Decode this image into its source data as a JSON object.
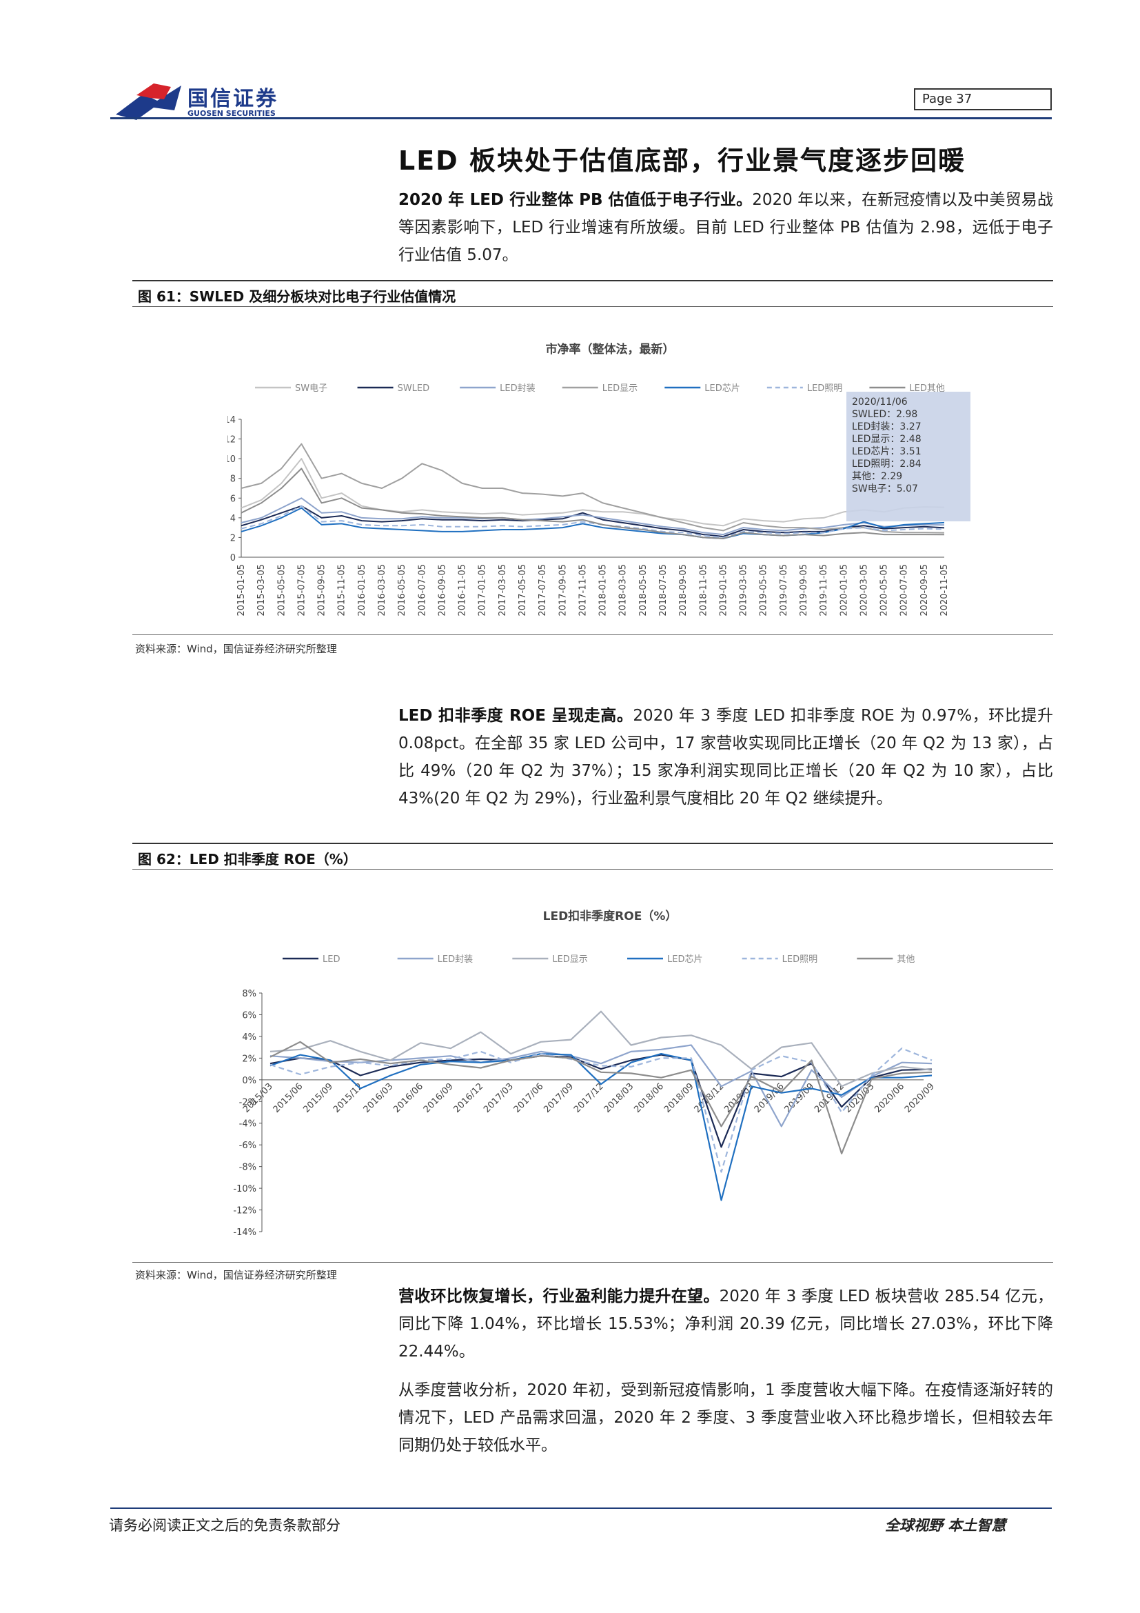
{
  "header": {
    "logo_cn": "国信证券",
    "logo_en": "GUOSEN SECURITIES",
    "page_label": "Page  37"
  },
  "title": "LED 板块处于估值底部，行业景气度逐步回暖",
  "para1": {
    "bold": "2020 年 LED 行业整体 PB 估值低于电子行业。",
    "text": "2020 年以来，在新冠疫情以及中美贸易战等因素影响下，LED 行业增速有所放缓。目前 LED 行业整体 PB 估值为 2.98，远低于电子行业估值 5.07。"
  },
  "fig61": {
    "caption": "图 61：SWLED 及细分板块对比电子行业估值情况",
    "source": "资料来源：Wind，国信证券经济研究所整理",
    "tooltip": [
      "2020/11/06",
      "SWLED：2.98",
      "LED封装：3.27",
      "LED显示：2.48",
      "LED芯片：3.51",
      "LED照明：2.84",
      "其他：2.29",
      "SW电子：5.07"
    ]
  },
  "para2": {
    "bold": "LED 扣非季度 ROE 呈现走高。",
    "text": "2020 年 3 季度 LED 扣非季度 ROE 为 0.97%，环比提升 0.08pct。在全部 35 家 LED 公司中，17 家营收实现同比正增长（20 年 Q2 为 13 家），占比 49%（20 年 Q2 为 37%）；15 家净利润实现同比正增长（20 年 Q2 为 10 家），占比 43%(20 年 Q2 为 29%)，行业盈利景气度相比 20 年 Q2 继续提升。"
  },
  "fig62": {
    "caption": "图 62：LED 扣非季度 ROE（%）",
    "source": "资料来源：Wind，国信证券经济研究所整理"
  },
  "para3": {
    "bold": "营收环比恢复增长，行业盈利能力提升在望。",
    "text": "2020 年 3 季度 LED 板块营收 285.54 亿元，同比下降 1.04%，环比增长 15.53%；净利润 20.39 亿元，同比增长 27.03%，环比下降 22.44%。"
  },
  "para4": {
    "text": "从季度营收分析，2020 年初，受到新冠疫情影响，1 季度营收大幅下降。在疫情逐渐好转的情况下，LED 产品需求回温，2020 年 2 季度、3 季度营业收入环比稳步增长，但相较去年同期仍处于较低水平。"
  },
  "footer": {
    "left": "请务必阅读正文之后的免责条款部分",
    "right": "全球视野  本土智慧"
  },
  "chart_data": [
    {
      "type": "line",
      "title": "市净率（整体法，最新）",
      "ylim": [
        0,
        14
      ],
      "yticks": [
        0,
        2,
        4,
        6,
        8,
        10,
        12,
        14
      ],
      "categories": [
        "2015-01-05",
        "2015-03-05",
        "2015-05-05",
        "2015-07-05",
        "2015-09-05",
        "2015-11-05",
        "2016-01-05",
        "2016-03-05",
        "2016-05-05",
        "2016-07-05",
        "2016-09-05",
        "2016-11-05",
        "2017-01-05",
        "2017-03-05",
        "2017-05-05",
        "2017-07-05",
        "2017-09-05",
        "2017-11-05",
        "2018-01-05",
        "2018-03-05",
        "2018-05-05",
        "2018-07-05",
        "2018-09-05",
        "2018-11-05",
        "2019-01-05",
        "2019-03-05",
        "2019-05-05",
        "2019-07-05",
        "2019-09-05",
        "2019-11-05",
        "2020-01-05",
        "2020-03-05",
        "2020-05-05",
        "2020-07-05",
        "2020-09-05",
        "2020-11-05"
      ],
      "series": [
        {
          "name": "SW电子",
          "color": "#c4c4c4",
          "dash": false,
          "values": [
            5.0,
            5.8,
            7.5,
            10.0,
            6.0,
            6.5,
            5.2,
            4.8,
            4.6,
            4.8,
            4.6,
            4.5,
            4.4,
            4.5,
            4.3,
            4.4,
            4.5,
            4.8,
            4.6,
            4.6,
            4.4,
            4.0,
            3.8,
            3.4,
            3.2,
            3.9,
            3.7,
            3.6,
            3.9,
            4.0,
            4.6,
            4.8,
            4.6,
            5.0,
            5.1,
            5.07
          ]
        },
        {
          "name": "SWLED",
          "color": "#1b2a55",
          "dash": false,
          "values": [
            3.2,
            3.8,
            4.5,
            5.2,
            4.0,
            4.2,
            3.7,
            3.6,
            3.7,
            3.9,
            3.8,
            3.8,
            3.7,
            3.8,
            3.7,
            3.8,
            3.9,
            4.5,
            3.8,
            3.5,
            3.2,
            2.9,
            2.7,
            2.3,
            2.1,
            2.8,
            2.6,
            2.5,
            2.6,
            2.6,
            3.0,
            3.2,
            2.9,
            3.0,
            3.1,
            2.98
          ]
        },
        {
          "name": "LED封装",
          "color": "#8ea4cc",
          "dash": false,
          "values": [
            3.5,
            4.0,
            5.0,
            6.0,
            4.5,
            4.6,
            4.0,
            3.9,
            3.9,
            4.1,
            4.0,
            4.0,
            3.9,
            4.0,
            3.8,
            3.9,
            4.1,
            4.3,
            4.0,
            3.7,
            3.4,
            3.1,
            2.9,
            2.5,
            2.3,
            3.0,
            2.8,
            2.7,
            2.9,
            3.0,
            3.3,
            3.5,
            3.1,
            3.2,
            3.3,
            3.27
          ]
        },
        {
          "name": "LED显示",
          "color": "#a0a0a0",
          "dash": false,
          "values": [
            7.0,
            7.5,
            9.0,
            11.5,
            8.0,
            8.5,
            7.5,
            7.0,
            8.0,
            9.5,
            8.8,
            7.5,
            7.0,
            7.0,
            6.5,
            6.4,
            6.2,
            6.5,
            5.5,
            5.0,
            4.5,
            4.0,
            3.5,
            3.0,
            2.7,
            3.5,
            3.2,
            3.0,
            3.0,
            2.8,
            3.0,
            3.0,
            2.6,
            2.5,
            2.5,
            2.48
          ]
        },
        {
          "name": "LED芯片",
          "color": "#1f6fc0",
          "dash": false,
          "values": [
            2.6,
            3.2,
            4.0,
            5.0,
            3.3,
            3.4,
            3.0,
            2.9,
            2.8,
            2.7,
            2.6,
            2.6,
            2.7,
            2.8,
            2.8,
            2.9,
            3.0,
            3.4,
            3.0,
            2.8,
            2.6,
            2.4,
            2.3,
            2.0,
            1.9,
            2.4,
            2.3,
            2.2,
            2.3,
            2.5,
            2.9,
            3.6,
            3.0,
            3.3,
            3.4,
            3.51
          ]
        },
        {
          "name": "LED照明",
          "color": "#9db5dc",
          "dash": true,
          "values": [
            2.9,
            3.4,
            4.2,
            5.2,
            3.6,
            3.7,
            3.3,
            3.2,
            3.2,
            3.3,
            3.1,
            3.1,
            3.1,
            3.2,
            3.1,
            3.2,
            3.3,
            3.6,
            3.3,
            3.1,
            2.9,
            2.6,
            2.5,
            2.2,
            2.0,
            2.6,
            2.5,
            2.4,
            2.5,
            2.5,
            2.9,
            3.0,
            2.7,
            2.8,
            2.9,
            2.84
          ]
        },
        {
          "name": "LED其他",
          "color": "#8c8c8c",
          "dash": false,
          "values": [
            4.5,
            5.5,
            7.0,
            9.0,
            5.5,
            6.0,
            5.0,
            4.8,
            4.5,
            4.4,
            4.2,
            4.1,
            4.0,
            4.0,
            3.8,
            3.7,
            3.6,
            3.8,
            3.3,
            3.0,
            2.8,
            2.5,
            2.3,
            2.0,
            1.9,
            2.5,
            2.3,
            2.2,
            2.3,
            2.2,
            2.4,
            2.5,
            2.3,
            2.3,
            2.3,
            2.29
          ]
        }
      ]
    },
    {
      "type": "line",
      "title": "LED扣非季度ROE（%）",
      "ylim": [
        -14,
        8
      ],
      "yticks": [
        "8%",
        "6%",
        "4%",
        "2%",
        "0%",
        "-2%",
        "-4%",
        "-6%",
        "-8%",
        "-10%",
        "-12%",
        "-14%"
      ],
      "categories": [
        "2015/03",
        "2015/06",
        "2015/09",
        "2015/12",
        "2016/03",
        "2016/06",
        "2016/09",
        "2016/12",
        "2017/03",
        "2017/06",
        "2017/09",
        "2017/12",
        "2018/03",
        "2018/06",
        "2018/09",
        "2018/12",
        "2019/03",
        "2019/06",
        "2019/09",
        "2019/12",
        "2020/03",
        "2020/06",
        "2020/09"
      ],
      "series": [
        {
          "name": "LED",
          "color": "#1b2a55",
          "dash": false,
          "values": [
            1.5,
            2.0,
            1.8,
            0.4,
            1.2,
            1.6,
            1.8,
            1.9,
            1.8,
            2.2,
            2.1,
            1.0,
            1.8,
            2.3,
            1.8,
            -6.2,
            0.6,
            0.3,
            1.5,
            -2.5,
            0.2,
            0.9,
            0.97
          ]
        },
        {
          "name": "LED封装",
          "color": "#8ea4cc",
          "dash": false,
          "values": [
            2.2,
            2.0,
            1.7,
            1.6,
            1.8,
            2.0,
            2.2,
            1.6,
            2.0,
            2.6,
            2.2,
            1.5,
            2.6,
            2.8,
            3.2,
            -0.6,
            0.8,
            -4.3,
            0.9,
            -1.6,
            0.3,
            1.6,
            1.5
          ]
        },
        {
          "name": "LED显示",
          "color": "#a9b0bc",
          "dash": false,
          "values": [
            2.6,
            2.8,
            3.6,
            2.6,
            1.8,
            3.4,
            2.9,
            4.4,
            2.4,
            3.5,
            3.7,
            6.3,
            3.2,
            3.9,
            4.1,
            3.2,
            1.0,
            3.0,
            3.4,
            -0.6,
            0.6,
            1.2,
            0.9
          ]
        },
        {
          "name": "LED芯片",
          "color": "#1f6fc0",
          "dash": false,
          "values": [
            1.3,
            2.3,
            1.8,
            -0.8,
            0.4,
            1.4,
            1.7,
            1.6,
            1.8,
            2.4,
            2.3,
            -0.4,
            1.6,
            2.4,
            1.8,
            -11.1,
            -0.6,
            -1.2,
            -0.8,
            -1.4,
            0.2,
            0.2,
            0.4
          ]
        },
        {
          "name": "LED照明",
          "color": "#9db5dc",
          "dash": true,
          "values": [
            1.4,
            0.5,
            1.2,
            1.6,
            1.3,
            1.8,
            1.9,
            2.6,
            1.6,
            2.4,
            1.9,
            1.3,
            1.2,
            2.0,
            2.0,
            -8.5,
            0.9,
            2.2,
            1.6,
            -3.0,
            0.4,
            2.9,
            1.8
          ]
        },
        {
          "name": "其他",
          "color": "#8c8c8c",
          "dash": false,
          "values": [
            2.1,
            3.5,
            1.6,
            1.9,
            1.5,
            1.8,
            1.4,
            1.1,
            1.8,
            2.2,
            2.0,
            0.7,
            0.6,
            0.2,
            0.9,
            -4.3,
            0.3,
            -1.1,
            1.8,
            -6.8,
            0.1,
            0.6,
            0.7
          ]
        }
      ]
    }
  ]
}
